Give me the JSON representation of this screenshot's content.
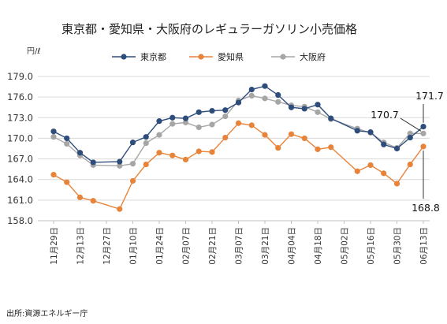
{
  "chart_data": {
    "type": "line",
    "title": "東京都・愛知県・大阪府のレギュラーガソリン小売価格",
    "unit_label": "円/ℓ",
    "ylim": [
      158.0,
      179.0
    ],
    "yticks": [
      "179.0",
      "176.0",
      "173.0",
      "170.0",
      "167.0",
      "164.0",
      "161.0",
      "158.0"
    ],
    "ytick_values": [
      179,
      176,
      173,
      170,
      167,
      164,
      161,
      158
    ],
    "grid": true,
    "legend_position": "top",
    "x_tick_labels": [
      "11月29日",
      "12月13日",
      "12月27日",
      "01月10日",
      "01月24日",
      "02月07日",
      "02月21日",
      "03月07日",
      "03月21日",
      "04月04日",
      "04月18日",
      "05月02日",
      "05月16日",
      "05月30日",
      "06月13日"
    ],
    "series": [
      {
        "name": "東京都",
        "color": "#2e4d7b",
        "values": [
          171.0,
          170.0,
          167.9,
          166.5,
          null,
          166.6,
          169.4,
          170.2,
          172.5,
          173.0,
          172.9,
          173.8,
          174.0,
          174.1,
          175.2,
          177.1,
          177.6,
          176.3,
          174.5,
          174.3,
          174.9,
          172.9,
          null,
          171.1,
          170.9,
          169.1,
          168.5,
          170.1,
          171.7
        ],
        "marker": "circle"
      },
      {
        "name": "愛知県",
        "color": "#e8843a",
        "values": [
          164.7,
          163.6,
          161.4,
          160.9,
          null,
          159.7,
          163.8,
          166.2,
          167.9,
          167.5,
          166.9,
          168.1,
          168.0,
          170.1,
          172.2,
          171.9,
          170.5,
          168.6,
          170.6,
          170.0,
          168.4,
          168.7,
          null,
          165.2,
          166.1,
          164.9,
          163.4,
          166.2,
          168.8
        ],
        "marker": "circle"
      },
      {
        "name": "大阪府",
        "color": "#a6a6a6",
        "values": [
          170.2,
          169.2,
          167.5,
          166.1,
          null,
          166.0,
          166.3,
          169.3,
          170.5,
          172.1,
          172.3,
          171.6,
          172.0,
          173.2,
          175.5,
          176.2,
          175.8,
          175.3,
          174.8,
          174.6,
          173.8,
          172.8,
          null,
          171.4,
          170.8,
          169.4,
          168.6,
          170.7,
          170.7
        ],
        "marker": "circle"
      }
    ],
    "annotations": [
      {
        "text": "171.7",
        "series": "東京都"
      },
      {
        "text": "170.7",
        "series": "大阪府"
      },
      {
        "text": "168.8",
        "series": "愛知県"
      }
    ],
    "source": "出所:資源エネルギー庁"
  }
}
